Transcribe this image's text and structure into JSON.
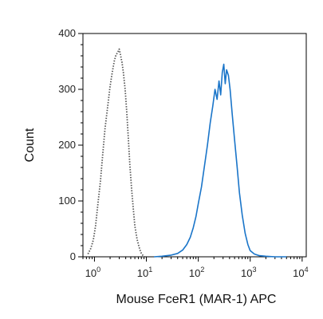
{
  "chart_data": {
    "type": "line",
    "title": "",
    "xlabel": "Mouse FceR1 (MAR-1) APC",
    "ylabel": "Count",
    "x_scale": "log",
    "xlim": [
      0.6,
      12000
    ],
    "ylim": [
      0,
      400
    ],
    "x_ticks": [
      {
        "base": "10",
        "exp": "0",
        "value": 1
      },
      {
        "base": "10",
        "exp": "1",
        "value": 10
      },
      {
        "base": "10",
        "exp": "2",
        "value": 100
      },
      {
        "base": "10",
        "exp": "3",
        "value": 1000
      },
      {
        "base": "10",
        "exp": "4",
        "value": 10000
      }
    ],
    "y_ticks": [
      0,
      100,
      200,
      300,
      400
    ],
    "grid": false,
    "series": [
      {
        "style": "dotted",
        "color": "#555555",
        "x": [
          0.75,
          0.85,
          0.95,
          1.05,
          1.15,
          1.3,
          1.45,
          1.6,
          1.8,
          2.0,
          2.2,
          2.4,
          2.6,
          2.8,
          3.0,
          3.2,
          3.4,
          3.6,
          3.9,
          4.2,
          4.5,
          4.8,
          5.2,
          5.6,
          6.0,
          6.6,
          7.2,
          7.8,
          8.5,
          9.2
        ],
        "y": [
          5,
          15,
          30,
          55,
          90,
          135,
          185,
          230,
          270,
          305,
          330,
          350,
          362,
          366,
          372,
          360,
          348,
          330,
          300,
          258,
          210,
          165,
          120,
          85,
          55,
          32,
          18,
          8,
          3,
          0
        ]
      },
      {
        "style": "solid",
        "color": "#1a75c9",
        "x": [
          14,
          20,
          30,
          40,
          50,
          60,
          70,
          80,
          90,
          100,
          115,
          130,
          150,
          170,
          190,
          210,
          230,
          250,
          270,
          290,
          310,
          330,
          350,
          380,
          410,
          450,
          500,
          560,
          620,
          700,
          800,
          900,
          1000,
          1200,
          1500,
          2000,
          3000,
          5000
        ],
        "y": [
          0,
          1,
          3,
          6,
          12,
          22,
          35,
          52,
          72,
          95,
          125,
          160,
          200,
          240,
          270,
          300,
          282,
          315,
          290,
          330,
          345,
          310,
          335,
          325,
          300,
          255,
          210,
          160,
          115,
          75,
          42,
          22,
          11,
          5,
          2,
          1,
          0,
          0
        ]
      }
    ]
  }
}
